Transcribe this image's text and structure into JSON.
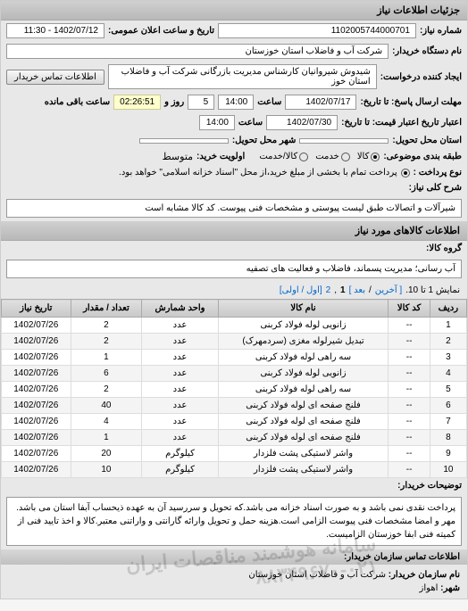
{
  "header": {
    "title": "جزئیات اطلاعات نیاز"
  },
  "fields": {
    "need_no_label": "شماره نیاز:",
    "need_no": "1102005744000701",
    "announce_label": "تاریخ و ساعت اعلان عمومی:",
    "announce_val": "1402/07/12 - 11:30",
    "buyer_label": "نام دستگاه خریدار:",
    "buyer_val": "شرکت آب و فاضلاب استان خوزستان",
    "requester_label": "ایجاد کننده درخواست:",
    "requester_val": "شیدوش شیروانیان کارشناس مدیریت بازرگانی شرکت آب و فاضلاب استان خوز",
    "contact_btn": "اطلاعات تماس خریدار",
    "deadline_label": "مهلت ارسال پاسخ: تا تاریخ:",
    "deadline_date": "1402/07/17",
    "time_label": "ساعت",
    "deadline_time": "14:00",
    "days_label": "روز و",
    "days_val": "5",
    "remain_label": "ساعت باقی مانده",
    "remain_val": "02:26:51",
    "validity_label": "اعتبار تاریخ اعتبار قیمت: تا تاریخ:",
    "validity_date": "1402/07/30",
    "validity_time": "14:00",
    "province_label": "استان محل تحویل:",
    "city_label": "شهر محل تحویل:",
    "pack_label": "طبقه بندی موضوعی:",
    "pack_goods": "کالا",
    "pack_service": "خدمت",
    "pack_both": "کالا/خدمت",
    "priority_label": "اولویت خرید:",
    "priority_val": "متوسط",
    "payment_label": "نوع پرداخت :",
    "payment_note": "پرداخت تمام با بخشی از مبلغ خرید،از محل \"اسناد خزانه اسلامی\" خواهد بود.",
    "desc_label": "شرح کلی نیاز:",
    "desc_val": "شیرآلات و اتصالات طبق لیست پیوستی و مشخصات فنی پیوست. کد کالا مشابه است",
    "goods_header": "اطلاعات کالاهای مورد نیاز",
    "group_label": "گروه کالا:",
    "group_val": "آب رسانی؛ مدیریت پسماند، فاضلاب و فعالیت های تصفیه",
    "pagination_text": "نمایش 1 تا 10.",
    "page_prev": "[ آخرین",
    "page_next": "بعد ]",
    "page_1": "1",
    "page_2": "2",
    "page_first": "[اول / اولی]",
    "notes_label": "توضیحات خریدار:",
    "notes_val": "پرداخت نقدی نمی باشد و به صورت اسناد خزانه می باشد.که تحویل و سررسید آن به عهده ذیحساب آبفا استان می باشد. مهر و امضا مشخصات فنی پیوست الزامی است.هزینه حمل و تحویل وارائه گارانتی و واراتنی معتبر.کالا و اخذ تایید فنی از کمیته فنی ابفا خوزستان الزامیست.",
    "contact_header": "اطلاعات تماس سازمان خریدار:",
    "org_label": "نام سازمان خریدار:",
    "org_val": "شرکت آب و فاضلاب استان خوزستان",
    "city2_label": "شهر:",
    "city2_val": "اهواز"
  },
  "table": {
    "cols": [
      "ردیف",
      "کد کالا",
      "نام کالا",
      "واحد شمارش",
      "تعداد / مقدار",
      "تاریخ نیاز"
    ],
    "rows": [
      [
        "1",
        "--",
        "زانویی لوله فولاد کربنی",
        "عدد",
        "2",
        "1402/07/26"
      ],
      [
        "2",
        "--",
        "تبدیل شیرلوله مغزی (سردمهرک)",
        "عدد",
        "2",
        "1402/07/26"
      ],
      [
        "3",
        "--",
        "سه راهی لوله فولاد کربنی",
        "عدد",
        "1",
        "1402/07/26"
      ],
      [
        "4",
        "--",
        "زانویی لوله فولاد کربنی",
        "عدد",
        "6",
        "1402/07/26"
      ],
      [
        "5",
        "--",
        "سه راهی لوله فولاد کربنی",
        "عدد",
        "2",
        "1402/07/26"
      ],
      [
        "6",
        "--",
        "فلنج صفحه ای لوله فولاد کربنی",
        "عدد",
        "40",
        "1402/07/26"
      ],
      [
        "7",
        "--",
        "فلنج صفحه ای لوله فولاد کربنی",
        "عدد",
        "4",
        "1402/07/26"
      ],
      [
        "8",
        "--",
        "فلنج صفحه ای لوله فولاد کربنی",
        "عدد",
        "1",
        "1402/07/26"
      ],
      [
        "9",
        "--",
        "واشر لاستیکی پشت فلزدار",
        "کیلوگرم",
        "20",
        "1402/07/26"
      ],
      [
        "10",
        "--",
        "واشر لاستیکی پشت فلزدار",
        "کیلوگرم",
        "10",
        "1402/07/26"
      ]
    ]
  },
  "watermark": "سامانه هوشمند مناقصات ایران\n۰۲۱-۸۸۳۴۹۶۷۰"
}
